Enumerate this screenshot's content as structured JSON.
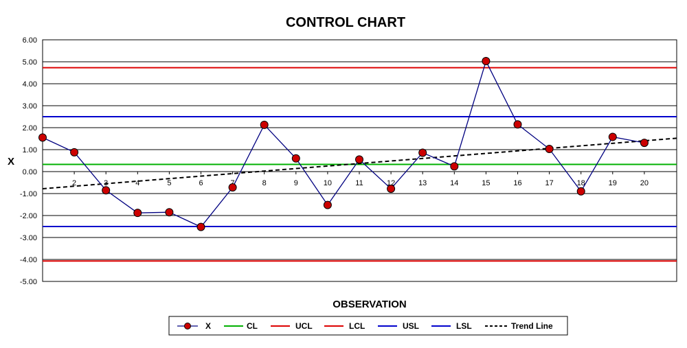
{
  "chart_data": {
    "type": "line",
    "title": "CONTROL CHART",
    "xlabel": "OBSERVATION",
    "ylabel": "X",
    "ylim": [
      -5,
      6
    ],
    "y_ticks": [
      "6.00",
      "5.00",
      "4.00",
      "3.00",
      "2.00",
      "1.00",
      "0.00",
      "-1.00",
      "-2.00",
      "-3.00",
      "-4.00",
      "-5.00"
    ],
    "x_ticks": [
      "2",
      "3",
      "4",
      "5",
      "6",
      "7",
      "8",
      "9",
      "10",
      "11",
      "12",
      "13",
      "14",
      "15",
      "16",
      "17",
      "18",
      "19",
      "20"
    ],
    "x": [
      1,
      2,
      3,
      4,
      5,
      6,
      7,
      8,
      9,
      10,
      11,
      12,
      13,
      14,
      15,
      16,
      17,
      18,
      19,
      20
    ],
    "series": [
      {
        "name": "X",
        "color": "#000080",
        "marker_color": "#cc0000",
        "values": [
          1.55,
          0.88,
          -0.85,
          -1.88,
          -1.85,
          -2.52,
          -0.72,
          2.13,
          0.6,
          -1.52,
          0.55,
          -0.78,
          0.86,
          0.24,
          5.03,
          2.15,
          1.03,
          -0.9,
          1.58,
          1.31
        ]
      }
    ],
    "reference_lines": [
      {
        "name": "CL",
        "value": 0.33,
        "color": "#00b000",
        "dashed": false
      },
      {
        "name": "UCL",
        "value": 4.73,
        "color": "#dd0000",
        "dashed": false
      },
      {
        "name": "LCL",
        "value": -4.07,
        "color": "#dd0000",
        "dashed": false
      },
      {
        "name": "USL",
        "value": 2.5,
        "color": "#0000cc",
        "dashed": false
      },
      {
        "name": "LSL",
        "value": -2.5,
        "color": "#0000cc",
        "dashed": false
      }
    ],
    "trend_line": {
      "name": "Trend Line",
      "start_value": -0.78,
      "end_value": 1.52,
      "color": "#000000",
      "dashed": true
    },
    "grid": true,
    "legend_position": "bottom-center",
    "legend": [
      "X",
      "CL",
      "UCL",
      "LCL",
      "USL",
      "LSL",
      "Trend Line"
    ]
  }
}
